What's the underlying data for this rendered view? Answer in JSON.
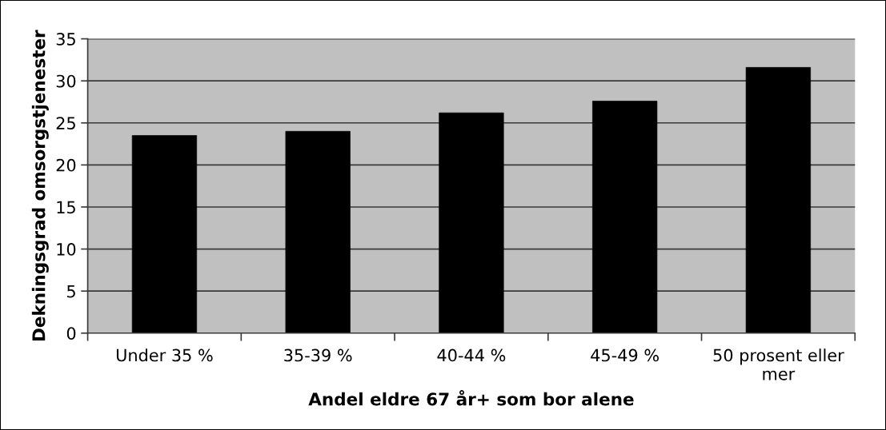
{
  "chart_data": {
    "type": "bar",
    "categories": [
      "Under 35 %",
      "35-39 %",
      "40-44 %",
      "45-49 %",
      "50 prosent eller mer"
    ],
    "values": [
      23.5,
      24.0,
      26.2,
      27.6,
      31.6
    ],
    "color": "#000000",
    "xlabel": "Andel eldre 67 år+ som bor alene",
    "ylabel": "Dekningsgrad omsorgstjenester",
    "ylim": [
      0,
      35
    ],
    "yticks": [
      0,
      5,
      10,
      15,
      20,
      25,
      30,
      35
    ],
    "grid": "y"
  }
}
